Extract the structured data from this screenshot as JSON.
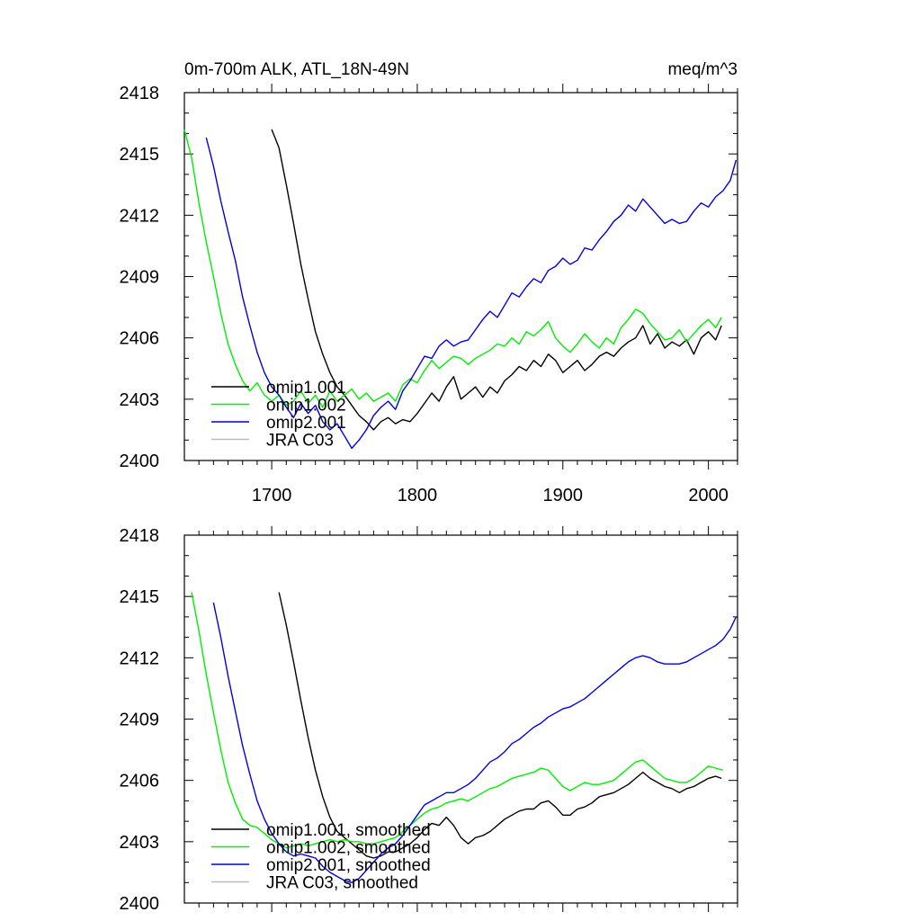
{
  "chart_data": [
    {
      "type": "line",
      "title": "0m-700m ALK, ATL_18N-49N",
      "units": "meq/m^3",
      "xlim": [
        1640,
        2020
      ],
      "ylim": [
        2400,
        2418
      ],
      "x_ticks": [
        1700,
        1800,
        1900,
        2000
      ],
      "x_tick_labels": [
        "1700",
        "1800",
        "1900",
        "2000"
      ],
      "y_ticks": [
        2400,
        2403,
        2406,
        2409,
        2412,
        2415,
        2418
      ],
      "y_tick_labels": [
        "2400",
        "2403",
        "2406",
        "2409",
        "2412",
        "2415",
        "2418"
      ],
      "legend_position": "lower-left",
      "grid": false,
      "series": [
        {
          "name": "omip1.001",
          "color": "#000000",
          "x": [
            1700,
            1705,
            1710,
            1715,
            1720,
            1725,
            1730,
            1735,
            1740,
            1745,
            1750,
            1755,
            1760,
            1765,
            1770,
            1775,
            1780,
            1785,
            1790,
            1795,
            1800,
            1805,
            1810,
            1815,
            1820,
            1825,
            1830,
            1835,
            1840,
            1845,
            1850,
            1855,
            1860,
            1865,
            1870,
            1875,
            1880,
            1885,
            1890,
            1895,
            1900,
            1905,
            1910,
            1915,
            1920,
            1925,
            1930,
            1935,
            1940,
            1945,
            1950,
            1955,
            1960,
            1965,
            1970,
            1975,
            1980,
            1985,
            1990,
            1995,
            2000,
            2005,
            2009
          ],
          "y": [
            2416.2,
            2415.3,
            2413.5,
            2411.6,
            2409.6,
            2407.9,
            2406.3,
            2405.2,
            2404.3,
            2403.6,
            2403.2,
            2402.7,
            2402.2,
            2401.9,
            2401.5,
            2401.9,
            2402.1,
            2401.8,
            2402.0,
            2401.9,
            2402.3,
            2402.8,
            2403.3,
            2402.9,
            2403.6,
            2404.1,
            2403.0,
            2403.3,
            2403.6,
            2403.1,
            2403.6,
            2403.3,
            2403.9,
            2404.2,
            2404.6,
            2404.4,
            2404.9,
            2404.6,
            2405.2,
            2404.9,
            2404.3,
            2404.6,
            2404.9,
            2404.4,
            2404.7,
            2405.1,
            2405.3,
            2405.1,
            2405.5,
            2405.8,
            2406.0,
            2406.6,
            2405.7,
            2406.2,
            2405.5,
            2405.8,
            2405.6,
            2405.9,
            2405.2,
            2406.0,
            2406.3,
            2405.9,
            2406.6
          ]
        },
        {
          "name": "omip1.002",
          "color": "#00ee00",
          "x": [
            1640,
            1645,
            1650,
            1655,
            1660,
            1665,
            1670,
            1675,
            1680,
            1685,
            1690,
            1695,
            1700,
            1705,
            1710,
            1715,
            1720,
            1725,
            1730,
            1735,
            1740,
            1745,
            1750,
            1755,
            1760,
            1765,
            1770,
            1775,
            1780,
            1785,
            1790,
            1795,
            1800,
            1805,
            1810,
            1815,
            1820,
            1825,
            1830,
            1835,
            1840,
            1845,
            1850,
            1855,
            1860,
            1865,
            1870,
            1875,
            1880,
            1885,
            1890,
            1895,
            1900,
            1905,
            1910,
            1915,
            1920,
            1925,
            1930,
            1935,
            1940,
            1945,
            1950,
            1955,
            1960,
            1965,
            1970,
            1975,
            1980,
            1985,
            1990,
            1995,
            2000,
            2005,
            2009
          ],
          "y": [
            2416.2,
            2414.8,
            2412.6,
            2410.7,
            2409.0,
            2407.2,
            2405.7,
            2404.7,
            2403.9,
            2403.4,
            2403.8,
            2403.2,
            2402.9,
            2403.2,
            2402.7,
            2402.9,
            2403.4,
            2402.8,
            2403.2,
            2402.6,
            2403.4,
            2402.9,
            2403.2,
            2403.5,
            2403.0,
            2403.3,
            2402.9,
            2403.1,
            2403.3,
            2402.9,
            2403.7,
            2404.0,
            2403.8,
            2404.4,
            2404.9,
            2404.5,
            2404.8,
            2405.1,
            2405.0,
            2404.7,
            2405.0,
            2405.2,
            2405.4,
            2405.7,
            2405.6,
            2406.0,
            2405.7,
            2406.3,
            2406.1,
            2406.4,
            2406.8,
            2406.0,
            2405.6,
            2405.3,
            2405.7,
            2406.2,
            2405.8,
            2405.5,
            2406.0,
            2405.7,
            2406.5,
            2406.9,
            2407.4,
            2407.2,
            2406.7,
            2406.3,
            2405.9,
            2406.0,
            2406.4,
            2405.8,
            2406.2,
            2406.6,
            2406.9,
            2406.5,
            2407.0
          ]
        },
        {
          "name": "omip2.001",
          "color": "#0000dd",
          "x": [
            1655,
            1660,
            1665,
            1670,
            1675,
            1680,
            1685,
            1690,
            1695,
            1700,
            1705,
            1710,
            1715,
            1720,
            1725,
            1730,
            1735,
            1740,
            1745,
            1750,
            1755,
            1760,
            1765,
            1770,
            1775,
            1780,
            1785,
            1790,
            1795,
            1800,
            1805,
            1810,
            1815,
            1820,
            1825,
            1830,
            1835,
            1840,
            1845,
            1850,
            1855,
            1860,
            1865,
            1870,
            1875,
            1880,
            1885,
            1890,
            1895,
            1900,
            1905,
            1910,
            1915,
            1920,
            1925,
            1930,
            1935,
            1940,
            1945,
            1950,
            1955,
            1960,
            1965,
            1970,
            1975,
            1980,
            1985,
            1990,
            1995,
            2000,
            2005,
            2010,
            2015,
            2019
          ],
          "y": [
            2415.8,
            2414.4,
            2412.7,
            2411.2,
            2409.8,
            2408.0,
            2406.6,
            2405.3,
            2404.3,
            2403.6,
            2403.2,
            2402.6,
            2402.1,
            2402.8,
            2402.3,
            2402.7,
            2401.9,
            2401.5,
            2401.8,
            2401.2,
            2400.6,
            2401.0,
            2401.5,
            2402.2,
            2402.6,
            2402.9,
            2402.5,
            2403.4,
            2403.9,
            2404.5,
            2405.1,
            2405.0,
            2405.6,
            2405.9,
            2405.6,
            2405.8,
            2405.9,
            2406.4,
            2406.9,
            2407.3,
            2407.0,
            2407.6,
            2408.2,
            2408.0,
            2408.5,
            2408.9,
            2408.7,
            2409.3,
            2409.5,
            2409.9,
            2409.6,
            2409.8,
            2410.4,
            2410.3,
            2410.8,
            2411.2,
            2411.7,
            2412.0,
            2412.5,
            2412.2,
            2412.8,
            2412.4,
            2412.0,
            2411.6,
            2411.8,
            2411.6,
            2411.7,
            2412.2,
            2412.6,
            2412.4,
            2412.9,
            2413.2,
            2413.7,
            2414.7
          ]
        },
        {
          "name": "JRA C03",
          "color": "#bbbbbb",
          "x": [],
          "y": []
        }
      ]
    },
    {
      "type": "line",
      "title": "",
      "xlim": [
        1640,
        2020
      ],
      "ylim": [
        2400,
        2418
      ],
      "y_ticks": [
        2400,
        2403,
        2406,
        2409,
        2412,
        2415,
        2418
      ],
      "y_tick_labels": [
        "2400",
        "2403",
        "2406",
        "2409",
        "2412",
        "2415",
        "2418"
      ],
      "legend_position": "lower-left",
      "grid": false,
      "series": [
        {
          "name": "omip1.001, smoothed",
          "color": "#000000",
          "x": [
            1705,
            1710,
            1715,
            1720,
            1725,
            1730,
            1735,
            1740,
            1745,
            1750,
            1755,
            1760,
            1765,
            1770,
            1775,
            1780,
            1785,
            1790,
            1795,
            1800,
            1805,
            1810,
            1815,
            1820,
            1825,
            1830,
            1835,
            1840,
            1845,
            1850,
            1855,
            1860,
            1865,
            1870,
            1875,
            1880,
            1885,
            1890,
            1895,
            1900,
            1905,
            1910,
            1915,
            1920,
            1925,
            1930,
            1935,
            1940,
            1945,
            1950,
            1955,
            1960,
            1965,
            1970,
            1975,
            1980,
            1985,
            1990,
            1995,
            2000,
            2005,
            2009
          ],
          "y": [
            2415.2,
            2413.6,
            2411.8,
            2409.9,
            2408.1,
            2406.5,
            2405.2,
            2404.2,
            2403.5,
            2403.2,
            2402.9,
            2402.6,
            2402.3,
            2402.2,
            2402.3,
            2402.5,
            2402.5,
            2402.7,
            2402.9,
            2403.2,
            2403.6,
            2403.9,
            2403.8,
            2404.2,
            2403.8,
            2403.2,
            2402.9,
            2403.2,
            2403.3,
            2403.5,
            2403.8,
            2404.1,
            2404.3,
            2404.5,
            2404.6,
            2404.6,
            2404.9,
            2405.0,
            2404.7,
            2404.3,
            2404.3,
            2404.6,
            2404.7,
            2404.9,
            2405.2,
            2405.3,
            2405.4,
            2405.6,
            2405.8,
            2406.1,
            2406.4,
            2406.1,
            2405.9,
            2405.7,
            2405.6,
            2405.4,
            2405.6,
            2405.7,
            2405.9,
            2406.1,
            2406.2,
            2406.1
          ]
        },
        {
          "name": "omip1.002, smoothed",
          "color": "#00ee00",
          "x": [
            1645,
            1650,
            1655,
            1660,
            1665,
            1670,
            1675,
            1680,
            1685,
            1690,
            1695,
            1700,
            1705,
            1710,
            1715,
            1720,
            1725,
            1730,
            1735,
            1740,
            1745,
            1750,
            1755,
            1760,
            1765,
            1770,
            1775,
            1780,
            1785,
            1790,
            1795,
            1800,
            1805,
            1810,
            1815,
            1820,
            1825,
            1830,
            1835,
            1840,
            1845,
            1850,
            1855,
            1860,
            1865,
            1870,
            1875,
            1880,
            1885,
            1890,
            1895,
            1900,
            1905,
            1910,
            1915,
            1920,
            1925,
            1930,
            1935,
            1940,
            1945,
            1950,
            1955,
            1960,
            1965,
            1970,
            1975,
            1980,
            1985,
            1990,
            1995,
            2000,
            2005,
            2010
          ],
          "y": [
            2415.2,
            2413.3,
            2411.2,
            2409.3,
            2407.5,
            2405.9,
            2404.9,
            2404.1,
            2403.8,
            2403.7,
            2403.4,
            2403.1,
            2402.9,
            2402.7,
            2402.8,
            2402.9,
            2402.8,
            2402.9,
            2403.0,
            2403.1,
            2403.0,
            2403.1,
            2403.0,
            2403.0,
            2402.9,
            2402.9,
            2403.0,
            2403.1,
            2403.2,
            2403.5,
            2403.8,
            2404.1,
            2404.4,
            2404.6,
            2404.7,
            2404.9,
            2405.0,
            2405.1,
            2405.0,
            2405.2,
            2405.4,
            2405.6,
            2405.7,
            2405.9,
            2406.1,
            2406.2,
            2406.3,
            2406.4,
            2406.6,
            2406.5,
            2406.1,
            2405.7,
            2405.5,
            2405.7,
            2405.9,
            2405.8,
            2405.8,
            2405.9,
            2406.0,
            2406.3,
            2406.6,
            2406.9,
            2407.0,
            2406.7,
            2406.4,
            2406.1,
            2406.0,
            2405.9,
            2405.9,
            2406.1,
            2406.4,
            2406.7,
            2406.6,
            2406.5
          ]
        },
        {
          "name": "omip2.001, smoothed",
          "color": "#0000dd",
          "x": [
            1660,
            1665,
            1670,
            1675,
            1680,
            1685,
            1690,
            1695,
            1700,
            1705,
            1710,
            1715,
            1720,
            1725,
            1730,
            1735,
            1740,
            1745,
            1750,
            1755,
            1760,
            1765,
            1770,
            1775,
            1780,
            1785,
            1790,
            1795,
            1800,
            1805,
            1810,
            1815,
            1820,
            1825,
            1830,
            1835,
            1840,
            1845,
            1850,
            1855,
            1860,
            1865,
            1870,
            1875,
            1880,
            1885,
            1890,
            1895,
            1900,
            1905,
            1910,
            1915,
            1920,
            1925,
            1930,
            1935,
            1940,
            1945,
            1950,
            1955,
            1960,
            1965,
            1970,
            1975,
            1980,
            1985,
            1990,
            1995,
            2000,
            2005,
            2010,
            2015,
            2019
          ],
          "y": [
            2414.7,
            2413.0,
            2411.1,
            2409.4,
            2407.7,
            2406.3,
            2405.0,
            2404.1,
            2403.4,
            2402.9,
            2402.5,
            2402.3,
            2402.4,
            2402.3,
            2402.2,
            2401.8,
            2401.5,
            2401.3,
            2401.1,
            2401.0,
            2401.2,
            2401.6,
            2402.0,
            2402.4,
            2402.7,
            2402.9,
            2403.3,
            2403.8,
            2404.3,
            2404.8,
            2405.0,
            2405.2,
            2405.4,
            2405.4,
            2405.6,
            2405.8,
            2406.1,
            2406.5,
            2406.9,
            2407.1,
            2407.4,
            2407.8,
            2408.0,
            2408.3,
            2408.6,
            2408.8,
            2409.1,
            2409.3,
            2409.5,
            2409.6,
            2409.8,
            2410.0,
            2410.3,
            2410.6,
            2410.9,
            2411.2,
            2411.5,
            2411.8,
            2412.0,
            2412.1,
            2412.0,
            2411.8,
            2411.7,
            2411.7,
            2411.7,
            2411.8,
            2412.0,
            2412.2,
            2412.4,
            2412.6,
            2412.9,
            2413.4,
            2414.0
          ]
        },
        {
          "name": "JRA C03, smoothed",
          "color": "#bbbbbb",
          "x": [],
          "y": []
        }
      ]
    }
  ]
}
